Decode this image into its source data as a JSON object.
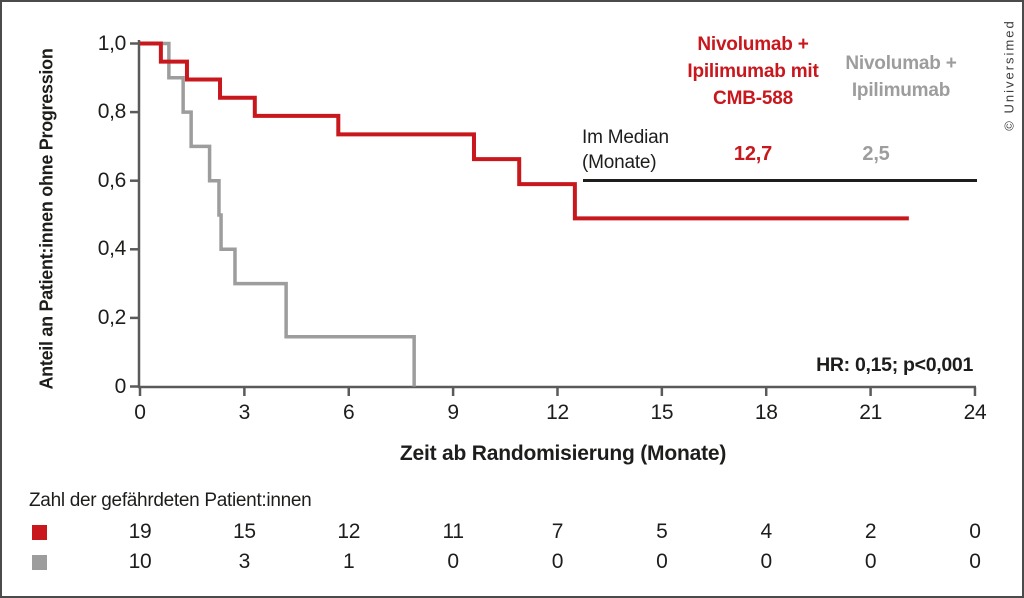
{
  "copyright": "© Universimed",
  "colors": {
    "series1": "#c8171d",
    "series2": "#9d9d9d",
    "axis": "#5a5a5a",
    "text": "#1d1d1b"
  },
  "legend": {
    "series1_label": "Nivolumab +\nIpilimumab mit\nCMB-588",
    "series2_label": "Nivolumab +\nIpilimumab"
  },
  "median": {
    "label": "Im Median\n(Monate)",
    "series1_value": "12,7",
    "series2_value": "2,5"
  },
  "annotations": {
    "hr": "HR: 0,15; p<0,001"
  },
  "chart_data": {
    "type": "line",
    "subtype": "kaplan-meier-step",
    "title": "",
    "xlabel": "Zeit ab Randomisierung (Monate)",
    "ylabel": "Anteil an Patient:innen ohne Progression",
    "xlim": [
      0,
      24
    ],
    "ylim": [
      0,
      1.0
    ],
    "grid": false,
    "legend_position": "top-right",
    "x_ticks": [
      0,
      3,
      6,
      9,
      12,
      15,
      18,
      21,
      24
    ],
    "x_tick_labels": [
      "0",
      "3",
      "6",
      "9",
      "12",
      "15",
      "18",
      "21",
      "24"
    ],
    "y_ticks": [
      0,
      0.2,
      0.4,
      0.6,
      0.8,
      1.0
    ],
    "y_tick_labels": [
      "0",
      "0,2",
      "0,4",
      "0,6",
      "0,8",
      "1,0"
    ],
    "series": [
      {
        "name": "Nivolumab + Ipilimumab mit CMB-588",
        "color": "#c8171d",
        "median_months": 12.7,
        "steps": [
          [
            0,
            1.0
          ],
          [
            0.6,
            0.947
          ],
          [
            1.35,
            0.895
          ],
          [
            2.3,
            0.842
          ],
          [
            3.3,
            0.789
          ],
          [
            5.7,
            0.735
          ],
          [
            9.6,
            0.663
          ],
          [
            10.9,
            0.59
          ],
          [
            12.5,
            0.49
          ]
        ],
        "end_month": 22.1
      },
      {
        "name": "Nivolumab + Ipilimumab",
        "color": "#9d9d9d",
        "median_months": 2.5,
        "steps": [
          [
            0,
            1.0
          ],
          [
            0.83,
            0.9
          ],
          [
            1.24,
            0.8
          ],
          [
            1.47,
            0.7
          ],
          [
            2.0,
            0.6
          ],
          [
            2.27,
            0.5
          ],
          [
            2.33,
            0.4
          ],
          [
            2.73,
            0.3
          ],
          [
            4.2,
            0.145
          ],
          [
            7.88,
            0
          ]
        ],
        "end_month": 7.88
      }
    ]
  },
  "risk_table": {
    "title": "Zahl der gefährdeten Patient:innen",
    "months": [
      0,
      3,
      6,
      9,
      12,
      15,
      18,
      21,
      24
    ],
    "rows": [
      {
        "series": "Nivolumab + Ipilimumab mit CMB-588",
        "color": "#c8171d",
        "counts": [
          "19",
          "15",
          "12",
          "11",
          "7",
          "5",
          "4",
          "2",
          "0"
        ]
      },
      {
        "series": "Nivolumab + Ipilimumab",
        "color": "#9d9d9d",
        "counts": [
          "10",
          "3",
          "1",
          "0",
          "0",
          "0",
          "0",
          "0",
          "0"
        ]
      }
    ]
  }
}
